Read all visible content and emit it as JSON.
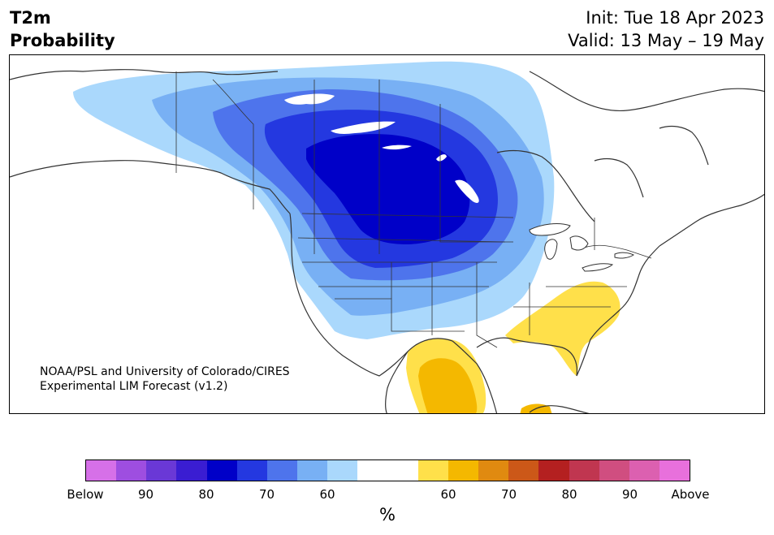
{
  "header": {
    "title_line1": "T2m",
    "title_line2": "Probability",
    "init": "Init: Tue 18 Apr 2023",
    "valid": "Valid: 13 May – 19 May"
  },
  "credit": {
    "line1": "NOAA/PSL and University of Colorado/CIRES",
    "line2": "Experimental LIM Forecast (v1.2)"
  },
  "colorbar": {
    "unit": "%",
    "colors": [
      "#d670e8",
      "#9e4ee0",
      "#6a38d6",
      "#3a1dd2",
      "#0000c8",
      "#2438e0",
      "#4e74ec",
      "#78b0f4",
      "#aad8fc",
      "#ffffff",
      "#ffffff",
      "#ffe04a",
      "#f4b800",
      "#e08a10",
      "#cc5818",
      "#b42020",
      "#c03650",
      "#d04e80",
      "#dc60b0",
      "#e870dc"
    ],
    "tick_labels": [
      "Below",
      "90",
      "80",
      "70",
      "60",
      "60",
      "70",
      "80",
      "90",
      "Above"
    ]
  },
  "map": {
    "colors": {
      "lightblue": "#aad8fc",
      "skyblue": "#78b0f4",
      "medblue": "#4e74ec",
      "blue": "#2438e0",
      "darkblue": "#0000c8",
      "lightyellow": "#ffe04a",
      "gold": "#f4b800",
      "border": "#333333"
    }
  }
}
